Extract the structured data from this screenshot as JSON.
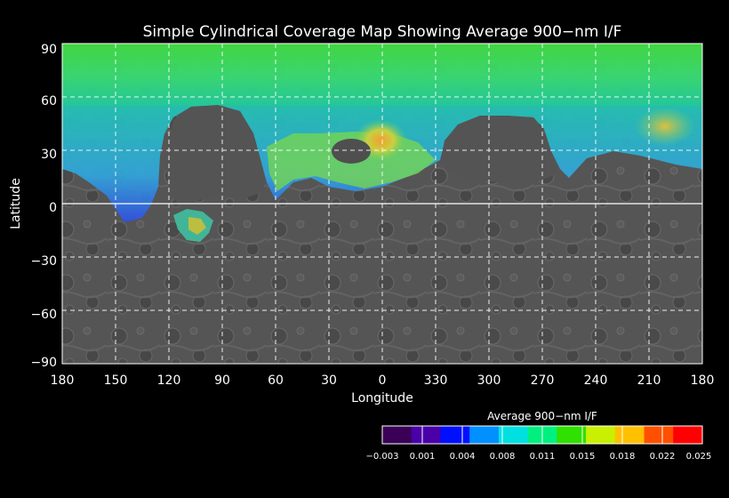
{
  "title": "Simple Cylindrical Coverage Map Showing Average 900−nm I/F",
  "axes": {
    "xlabel": "Longitude",
    "ylabel": "Latitude",
    "x_ticks": [
      "180",
      "150",
      "120",
      "90",
      "60",
      "30",
      "0",
      "330",
      "300",
      "270",
      "240",
      "210",
      "180"
    ],
    "y_ticks": [
      "90",
      "60",
      "30",
      "0",
      "−30",
      "−60",
      "−90"
    ]
  },
  "colorbar": {
    "title": "Average 900−nm I/F",
    "ticks": [
      "−0.003",
      "0.001",
      "0.004",
      "0.008",
      "0.011",
      "0.015",
      "0.018",
      "0.022",
      "0.025"
    ],
    "range": [
      -0.003,
      0.025
    ],
    "colors": [
      "#3a0058",
      "#4a00a8",
      "#0010ff",
      "#0090ff",
      "#00e0e0",
      "#00f080",
      "#30e000",
      "#c8f000",
      "#ffc000",
      "#ff5000",
      "#ff0000"
    ]
  },
  "map": {
    "basemap_color": "#505050",
    "grid_color": "#ffffff",
    "coverage_regions": [
      {
        "name": "north-polar-cap",
        "lat_range": [
          60,
          90
        ],
        "lon_range": [
          180,
          -180
        ],
        "mean_value": 0.014
      },
      {
        "name": "northern-coverage",
        "lat_range": [
          20,
          60
        ],
        "lon_range": [
          180,
          -180
        ],
        "mean_value": 0.009
      },
      {
        "name": "bright-spot-near-prime-meridian",
        "lat": 35,
        "lon": 0,
        "mean_value": 0.022
      },
      {
        "name": "bright-spot-east",
        "lat": 40,
        "lon": 200,
        "mean_value": 0.02
      },
      {
        "name": "equatorial-patch",
        "lat": -10,
        "lon": 105,
        "mean_value": 0.012
      }
    ]
  }
}
